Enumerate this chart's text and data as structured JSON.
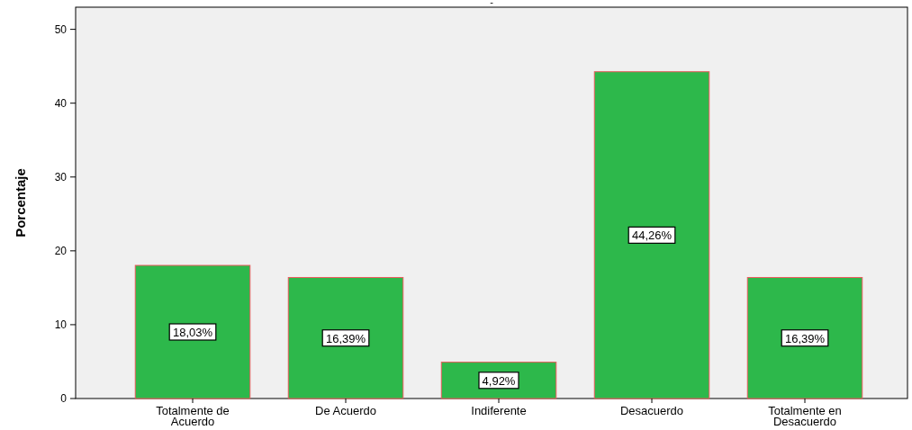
{
  "chart_data": {
    "type": "bar",
    "title": "-",
    "ylabel": "Porcentaje",
    "categories": [
      "Totalmente de Acuerdo",
      "De Acuerdo",
      "Indiferente",
      "Desacuerdo",
      "Totalmente en Desacuerdo"
    ],
    "values": [
      18.03,
      16.39,
      4.92,
      44.26,
      16.39
    ],
    "value_labels": [
      "18,03%",
      "16,39%",
      "4,92%",
      "44,26%",
      "16,39%"
    ],
    "color": "#2db84b",
    "ylim": [
      0,
      53
    ],
    "yticks": [
      0,
      10,
      20,
      30,
      40,
      50
    ],
    "grid": false
  }
}
